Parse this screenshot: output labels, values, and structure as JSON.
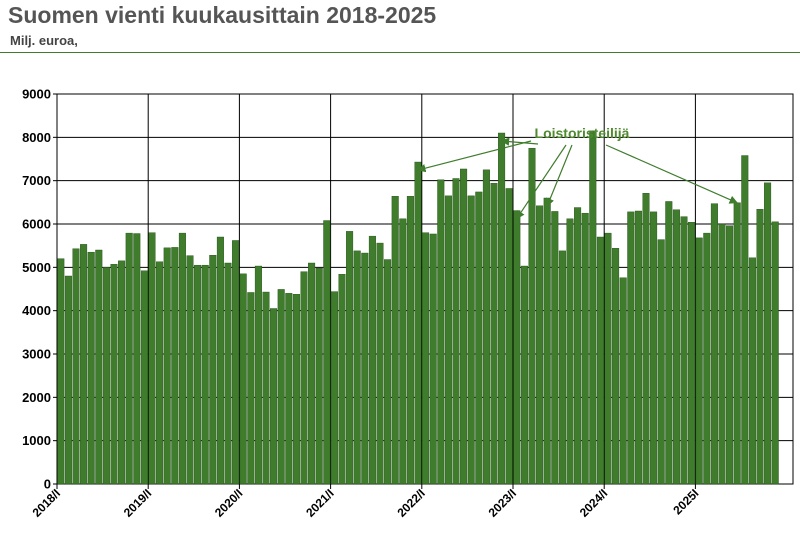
{
  "header": {
    "title": "Suomen vienti kuukausittain 2018-2025",
    "subtitle": "Milj. euroa,"
  },
  "chart_data": {
    "type": "bar",
    "title": "Suomen vienti kuukausittain 2018-2025",
    "ylabel": "Milj. euroa,",
    "ylim": [
      0,
      9000
    ],
    "yticks": [
      "0",
      "1000",
      "2000",
      "3000",
      "4000",
      "5000",
      "6000",
      "7000",
      "8000",
      "9000"
    ],
    "xtick_labels": [
      "2018/I",
      "2019/I",
      "2020/I",
      "2021/I",
      "2022/I",
      "2023/I",
      "2024/I",
      "2025I"
    ],
    "grid": true,
    "bar_color": "#3f7d2c",
    "annotation": {
      "text": "Loistoristeilijä",
      "targets": [
        47,
        58,
        60,
        64,
        89
      ]
    },
    "values": [
      5200,
      4800,
      5430,
      5530,
      5350,
      5400,
      5000,
      5070,
      5150,
      5790,
      5780,
      4920,
      5800,
      5130,
      5450,
      5460,
      5790,
      5270,
      5050,
      5050,
      5280,
      5700,
      5100,
      5620,
      4850,
      4420,
      5030,
      4430,
      4050,
      4490,
      4400,
      4380,
      4900,
      5100,
      4980,
      6080,
      4440,
      4840,
      5830,
      5380,
      5330,
      5720,
      5560,
      5180,
      6640,
      6120,
      6640,
      7430,
      5800,
      5770,
      7020,
      6650,
      7050,
      7270,
      6650,
      6740,
      7250,
      6940,
      8100,
      6820,
      6310,
      5030,
      7750,
      6420,
      6600,
      6290,
      5380,
      6120,
      6380,
      6250,
      8150,
      5700,
      5790,
      5440,
      4760,
      6280,
      6300,
      6710,
      6280,
      5640,
      6520,
      6330,
      6170,
      6040,
      5680,
      5790,
      6470,
      6000,
      5960,
      6490,
      7580,
      5220,
      6340,
      6950,
      6050
    ]
  }
}
